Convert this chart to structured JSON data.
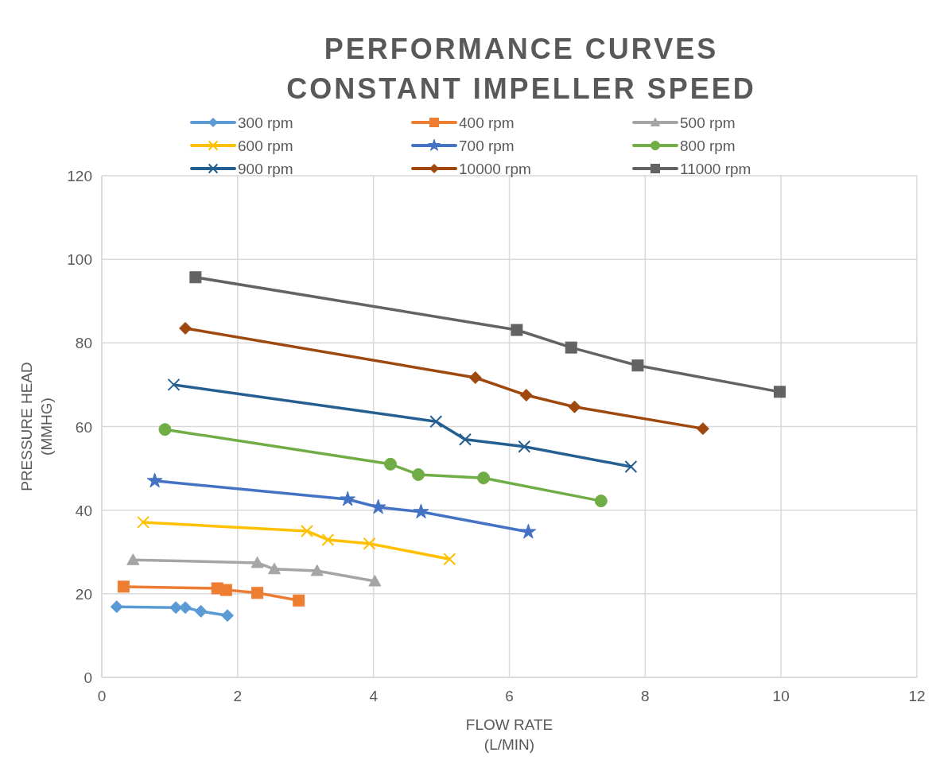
{
  "chart_data": {
    "type": "line",
    "title": "PERFORMANCE CURVES\nCONSTANT IMPELLER SPEED",
    "xlabel": "FLOW RATE\n(L/MIN)",
    "ylabel": "PRESSURE HEAD\n(MMHG)",
    "xlim": [
      0,
      12
    ],
    "xticks": [
      0,
      2,
      4,
      6,
      8,
      10,
      12
    ],
    "ylim": [
      0,
      120
    ],
    "yticks": [
      0,
      20,
      40,
      60,
      80,
      100,
      120
    ],
    "grid": true,
    "legend": "top",
    "line_style": "solid",
    "series": [
      {
        "name": "300 rpm",
        "color": "#5b9bd5",
        "marker": "diamond",
        "x": [
          0.22,
          1.09,
          1.23,
          1.46,
          1.85
        ],
        "values": [
          16.9,
          16.7,
          16.7,
          15.8,
          14.8
        ]
      },
      {
        "name": "400 rpm",
        "color": "#ed7d31",
        "marker": "square",
        "x": [
          0.32,
          1.7,
          1.83,
          2.29,
          2.9
        ],
        "values": [
          21.7,
          21.3,
          20.9,
          20.2,
          18.4
        ]
      },
      {
        "name": "500 rpm",
        "color": "#a5a5a5",
        "marker": "triangle",
        "x": [
          0.46,
          2.29,
          2.54,
          3.17,
          4.02
        ],
        "values": [
          28.1,
          27.4,
          25.9,
          25.5,
          23.0
        ]
      },
      {
        "name": "600 rpm",
        "color": "#ffc000",
        "marker": "cross",
        "x": [
          0.61,
          3.02,
          3.33,
          3.94,
          5.12
        ],
        "values": [
          37.1,
          35.0,
          32.9,
          32.0,
          28.3
        ]
      },
      {
        "name": "700 rpm",
        "color": "#4472c4",
        "marker": "star",
        "x": [
          0.78,
          3.62,
          4.07,
          4.7,
          6.28
        ],
        "values": [
          47.0,
          42.6,
          40.7,
          39.6,
          34.8
        ]
      },
      {
        "name": "800 rpm",
        "color": "#70ad47",
        "marker": "circle",
        "x": [
          0.93,
          4.25,
          4.66,
          5.62,
          7.35
        ],
        "values": [
          59.3,
          51.0,
          48.5,
          47.7,
          42.2
        ]
      },
      {
        "name": "900 rpm",
        "color": "#255e91",
        "marker": "cross",
        "x": [
          1.06,
          4.92,
          5.35,
          6.22,
          7.79
        ],
        "values": [
          70.0,
          61.2,
          56.9,
          55.2,
          50.4
        ]
      },
      {
        "name": "10000 rpm",
        "color": "#9e480e",
        "marker": "diamond",
        "x": [
          1.23,
          5.5,
          6.25,
          6.96,
          8.85
        ],
        "values": [
          83.5,
          71.7,
          67.5,
          64.7,
          59.5
        ]
      },
      {
        "name": "11000 rpm",
        "color": "#636363",
        "marker": "square",
        "x": [
          1.38,
          6.11,
          6.91,
          7.89,
          9.98
        ],
        "values": [
          95.7,
          83.1,
          78.9,
          74.6,
          68.3
        ]
      }
    ]
  }
}
